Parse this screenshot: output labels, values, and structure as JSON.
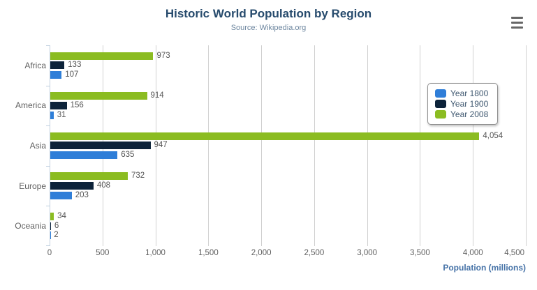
{
  "header": {
    "menu_icon": "hamburger-menu"
  },
  "chart_data": {
    "type": "bar",
    "title": "Historic World Population by Region",
    "subtitle": "Source: Wikipedia.org",
    "categories": [
      "Africa",
      "America",
      "Asia",
      "Europe",
      "Oceania"
    ],
    "series": [
      {
        "name": "Year 1800",
        "color": "#2f7ed8",
        "values": [
          107,
          31,
          635,
          203,
          2
        ]
      },
      {
        "name": "Year 1900",
        "color": "#0d233a",
        "values": [
          133,
          156,
          947,
          408,
          6
        ]
      },
      {
        "name": "Year 2008",
        "color": "#8bbc21",
        "values": [
          973,
          914,
          4054,
          732,
          34
        ]
      }
    ],
    "bar_display_order_top_to_bottom": [
      "Year 2008",
      "Year 1900",
      "Year 1800"
    ],
    "xlabel": "Population (millions)",
    "ylabel": "",
    "xlim": [
      0,
      4500
    ],
    "tick_values": [
      0,
      500,
      1000,
      1500,
      2000,
      2500,
      3000,
      3500,
      4000,
      4500
    ],
    "tick_labels": [
      "0",
      "500",
      "1,000",
      "1,500",
      "2,000",
      "2,500",
      "3,000",
      "3,500",
      "4,000",
      "4,500"
    ],
    "grid": true,
    "legend_position": "right-inside",
    "data_labels": true
  },
  "colors": {
    "title": "#274b6d",
    "subtitle": "#6d869f",
    "axis_title": "#4572a7",
    "axis_labels": "#606060",
    "data_labels": "#555555",
    "grid": "#d0d0d0",
    "axis_line": "#c0d0e0",
    "legend_border": "#8f8f8f",
    "menu_icon": "#666666",
    "background": "#ffffff"
  }
}
